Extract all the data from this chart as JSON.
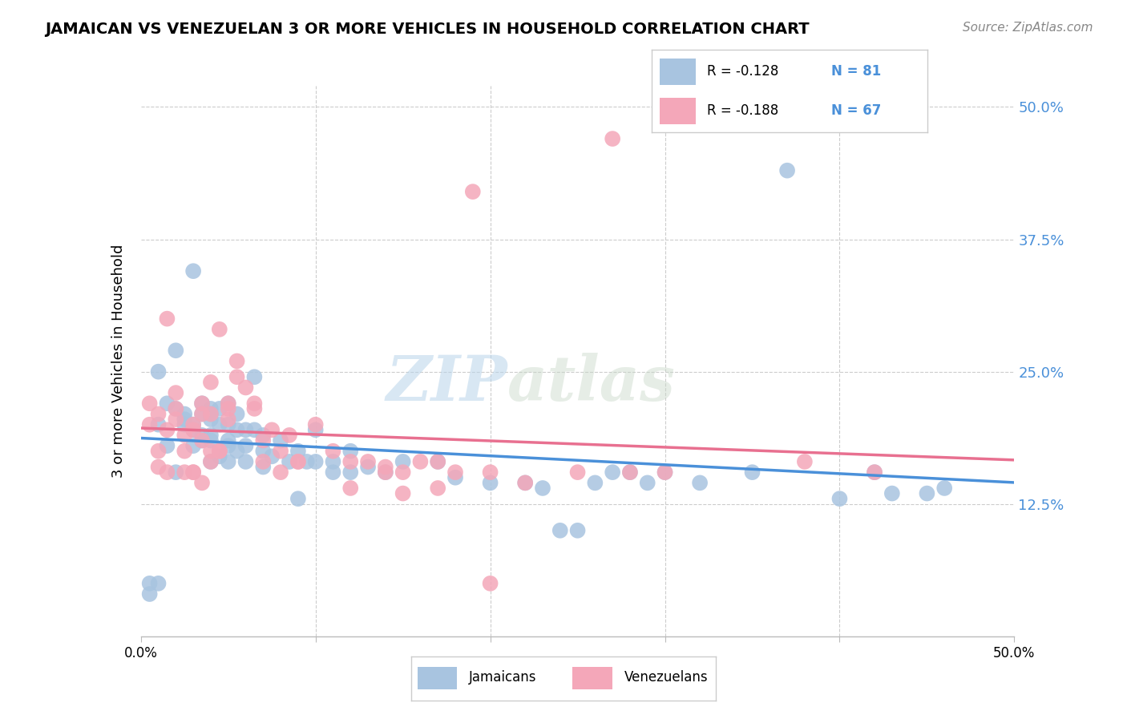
{
  "title": "JAMAICAN VS VENEZUELAN 3 OR MORE VEHICLES IN HOUSEHOLD CORRELATION CHART",
  "source": "Source: ZipAtlas.com",
  "ylabel": "3 or more Vehicles in Household",
  "ytick_labels": [
    "12.5%",
    "25.0%",
    "37.5%",
    "50.0%"
  ],
  "ytick_values": [
    0.125,
    0.25,
    0.375,
    0.5
  ],
  "xlim": [
    0.0,
    0.5
  ],
  "ylim": [
    0.0,
    0.52
  ],
  "watermark_zip": "ZIP",
  "watermark_atlas": "atlas",
  "blue_color": "#a8c4e0",
  "pink_color": "#f4a7b9",
  "blue_line_color": "#4a90d9",
  "pink_line_color": "#e87090",
  "grid_color": "#cccccc",
  "background_color": "#ffffff",
  "dot_size": 200,
  "jamaicans_x": [
    0.01,
    0.015,
    0.02,
    0.025,
    0.025,
    0.03,
    0.03,
    0.03,
    0.035,
    0.035,
    0.035,
    0.04,
    0.04,
    0.04,
    0.04,
    0.04,
    0.045,
    0.045,
    0.045,
    0.05,
    0.05,
    0.05,
    0.05,
    0.055,
    0.055,
    0.055,
    0.06,
    0.06,
    0.065,
    0.065,
    0.07,
    0.07,
    0.075,
    0.08,
    0.085,
    0.09,
    0.095,
    0.1,
    0.1,
    0.11,
    0.11,
    0.12,
    0.12,
    0.13,
    0.14,
    0.15,
    0.17,
    0.18,
    0.2,
    0.22,
    0.23,
    0.24,
    0.25,
    0.26,
    0.27,
    0.28,
    0.29,
    0.3,
    0.32,
    0.35,
    0.4,
    0.42,
    0.45,
    0.005,
    0.01,
    0.01,
    0.015,
    0.02,
    0.02,
    0.025,
    0.03,
    0.035,
    0.04,
    0.05,
    0.06,
    0.07,
    0.09,
    0.43,
    0.46,
    0.37,
    0.005
  ],
  "jamaicans_y": [
    0.2,
    0.22,
    0.215,
    0.205,
    0.21,
    0.195,
    0.2,
    0.18,
    0.19,
    0.21,
    0.22,
    0.19,
    0.205,
    0.21,
    0.215,
    0.165,
    0.17,
    0.2,
    0.215,
    0.18,
    0.185,
    0.2,
    0.22,
    0.175,
    0.195,
    0.21,
    0.18,
    0.195,
    0.245,
    0.195,
    0.16,
    0.175,
    0.17,
    0.185,
    0.165,
    0.175,
    0.165,
    0.165,
    0.195,
    0.155,
    0.165,
    0.155,
    0.175,
    0.16,
    0.155,
    0.165,
    0.165,
    0.15,
    0.145,
    0.145,
    0.14,
    0.1,
    0.1,
    0.145,
    0.155,
    0.155,
    0.145,
    0.155,
    0.145,
    0.155,
    0.13,
    0.155,
    0.135,
    0.05,
    0.05,
    0.25,
    0.18,
    0.155,
    0.27,
    0.2,
    0.345,
    0.185,
    0.185,
    0.165,
    0.165,
    0.19,
    0.13,
    0.135,
    0.14,
    0.44,
    0.04
  ],
  "venezuelans_x": [
    0.005,
    0.01,
    0.01,
    0.015,
    0.02,
    0.02,
    0.025,
    0.025,
    0.03,
    0.03,
    0.035,
    0.035,
    0.035,
    0.04,
    0.04,
    0.04,
    0.045,
    0.045,
    0.05,
    0.05,
    0.055,
    0.06,
    0.065,
    0.07,
    0.075,
    0.08,
    0.085,
    0.09,
    0.1,
    0.11,
    0.12,
    0.13,
    0.14,
    0.15,
    0.16,
    0.17,
    0.18,
    0.2,
    0.22,
    0.25,
    0.28,
    0.3,
    0.005,
    0.01,
    0.015,
    0.015,
    0.02,
    0.025,
    0.03,
    0.03,
    0.035,
    0.04,
    0.045,
    0.05,
    0.055,
    0.065,
    0.07,
    0.08,
    0.09,
    0.12,
    0.14,
    0.15,
    0.17,
    0.2,
    0.38,
    0.42,
    0.27,
    0.19
  ],
  "venezuelans_y": [
    0.2,
    0.21,
    0.175,
    0.195,
    0.205,
    0.215,
    0.19,
    0.175,
    0.2,
    0.195,
    0.185,
    0.21,
    0.22,
    0.21,
    0.175,
    0.165,
    0.175,
    0.29,
    0.205,
    0.22,
    0.245,
    0.235,
    0.215,
    0.165,
    0.195,
    0.175,
    0.19,
    0.165,
    0.2,
    0.175,
    0.165,
    0.165,
    0.155,
    0.155,
    0.165,
    0.165,
    0.155,
    0.155,
    0.145,
    0.155,
    0.155,
    0.155,
    0.22,
    0.16,
    0.155,
    0.3,
    0.23,
    0.155,
    0.155,
    0.155,
    0.145,
    0.24,
    0.175,
    0.215,
    0.26,
    0.22,
    0.185,
    0.155,
    0.165,
    0.14,
    0.16,
    0.135,
    0.14,
    0.05,
    0.165,
    0.155,
    0.47,
    0.42
  ]
}
